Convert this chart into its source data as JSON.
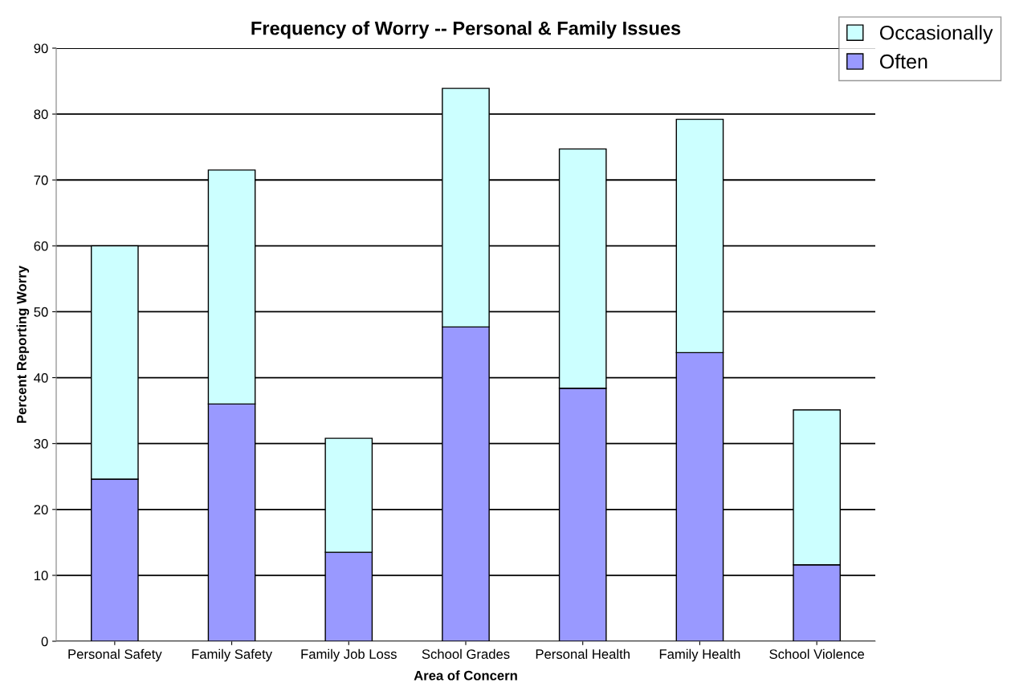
{
  "chart_data": {
    "type": "bar",
    "stacked": true,
    "title": "Frequency of Worry -- Personal & Family Issues",
    "xlabel": "Area of Concern",
    "ylabel": "Percent Reporting Worry",
    "categories": [
      "Personal Safety",
      "Family Safety",
      "Family Job Loss",
      "School Grades",
      "Personal Health",
      "Family Health",
      "School Violence"
    ],
    "series": [
      {
        "name": "Often",
        "color": "#9999ff",
        "values": [
          24.6,
          36.0,
          13.5,
          47.7,
          38.4,
          43.8,
          11.6
        ]
      },
      {
        "name": "Occasionally",
        "color": "#ccffff",
        "values": [
          35.4,
          35.5,
          17.3,
          36.2,
          36.3,
          35.4,
          23.5
        ]
      }
    ],
    "ylim": [
      0,
      90
    ],
    "yticks": [
      0,
      10,
      20,
      30,
      40,
      50,
      60,
      70,
      80,
      90
    ],
    "grid": "y",
    "legend": "top right"
  }
}
